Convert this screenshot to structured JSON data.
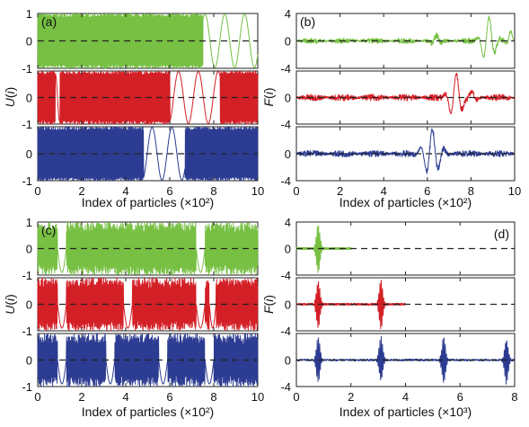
{
  "figure": {
    "colors": {
      "green": "#77c043",
      "red": "#d31f26",
      "blue": "#2c3c92"
    },
    "axis_color": "#222222",
    "zero_line": "dashed black"
  },
  "chart_data": [
    {
      "id": "a",
      "type": "line",
      "panel_label": "(a)",
      "ylabel": "U(i)",
      "xlabel": "Index of particles (×10²)",
      "xlim": [
        0,
        10
      ],
      "xticks": [
        "0",
        "2",
        "4",
        "6",
        "8",
        "10"
      ],
      "subplot_ylim": [
        -1,
        1
      ],
      "yticks": [
        "-1",
        "0",
        "1"
      ],
      "grid": false,
      "series": [
        {
          "color": "green",
          "values_description_free": true,
          "dense_oscillation_range": [
            0,
            7.5
          ],
          "smooth_extrema_x": [
            7.6,
            8.0,
            8.5,
            9.0,
            9.4,
            9.8
          ],
          "amplitude": 1
        },
        {
          "color": "red",
          "dense_oscillation_range": [
            0,
            6.0
          ],
          "gap_x": [
            0.8,
            1.0
          ],
          "smooth_extrema_x": [
            6.3,
            6.7,
            7.2,
            7.6,
            8.1
          ],
          "dense_after": [
            8.3,
            10
          ],
          "amplitude": 1
        },
        {
          "color": "blue",
          "dense_oscillation_range": [
            0,
            4.8
          ],
          "smooth_extrema_x": [
            5.5,
            5.8,
            6.2,
            6.5
          ],
          "dense_after": [
            6.7,
            10
          ],
          "amplitude": 1
        }
      ]
    },
    {
      "id": "b",
      "type": "line",
      "panel_label": "(b)",
      "ylabel": "F(i)",
      "xlabel": "Index of particles (×10²)",
      "xlim": [
        0,
        10
      ],
      "xticks": [
        "0",
        "2",
        "4",
        "6",
        "8",
        "10"
      ],
      "subplot_ylim": [
        -4,
        4
      ],
      "yticks": [
        "-4",
        "0",
        "4"
      ],
      "grid": false,
      "series": [
        {
          "color": "green",
          "noise": 0.4,
          "packets": [
            {
              "x": 6.4,
              "a": 0.8,
              "w": 0.5
            },
            {
              "x": 8.8,
              "a": 3.5,
              "w": 0.8
            },
            {
              "x": 9.8,
              "a": 1.5,
              "w": 0.3
            }
          ]
        },
        {
          "color": "red",
          "noise": 0.5,
          "packets": [
            {
              "x": 7.3,
              "a": 3.5,
              "w": 0.8
            },
            {
              "x": 8.0,
              "a": 1.0,
              "w": 0.6
            }
          ]
        },
        {
          "color": "blue",
          "noise": 0.5,
          "packets": [
            {
              "x": 6.2,
              "a": 3.5,
              "w": 1.0
            }
          ]
        }
      ]
    },
    {
      "id": "c",
      "type": "line",
      "panel_label": "(c)",
      "ylabel": "U(i)",
      "xlabel": "Index of particles (×10²)",
      "xlim": [
        0,
        10
      ],
      "xticks": [
        "0",
        "2",
        "4",
        "6",
        "8",
        "10"
      ],
      "subplot_ylim": [
        -1,
        1
      ],
      "yticks": [
        "-1",
        "0",
        "1"
      ],
      "grid": false,
      "series": [
        {
          "color": "green",
          "gaps_x": [
            [
              0.9,
              1.3
            ],
            [
              7.2,
              7.6
            ]
          ]
        },
        {
          "color": "red",
          "gaps_x": [
            [
              0.9,
              1.3
            ],
            [
              3.9,
              4.3
            ],
            [
              7.2,
              7.6
            ],
            [
              7.8,
              8.1
            ]
          ]
        },
        {
          "color": "blue",
          "gaps_x": [
            [
              0.9,
              1.3
            ],
            [
              3.1,
              3.5
            ],
            [
              5.5,
              5.9
            ],
            [
              7.6,
              8.0
            ]
          ]
        }
      ]
    },
    {
      "id": "d",
      "type": "line",
      "panel_label": "(d)",
      "ylabel": "F(i)",
      "xlabel": "Index of particles (×10³)",
      "xlim": [
        0,
        8
      ],
      "xticks": [
        "0",
        "2",
        "4",
        "6",
        "8"
      ],
      "subplot_ylim": [
        -4,
        4
      ],
      "yticks": [
        "-4",
        "0",
        "4"
      ],
      "grid": false,
      "series": [
        {
          "color": "green",
          "data_end_x": 2,
          "spikes_x": [
            0.8
          ]
        },
        {
          "color": "red",
          "data_end_x": 4,
          "spikes_x": [
            0.8,
            3.1
          ]
        },
        {
          "color": "blue",
          "data_end_x": 8,
          "spikes_x": [
            0.8,
            3.1,
            5.4,
            7.7
          ]
        }
      ]
    }
  ]
}
